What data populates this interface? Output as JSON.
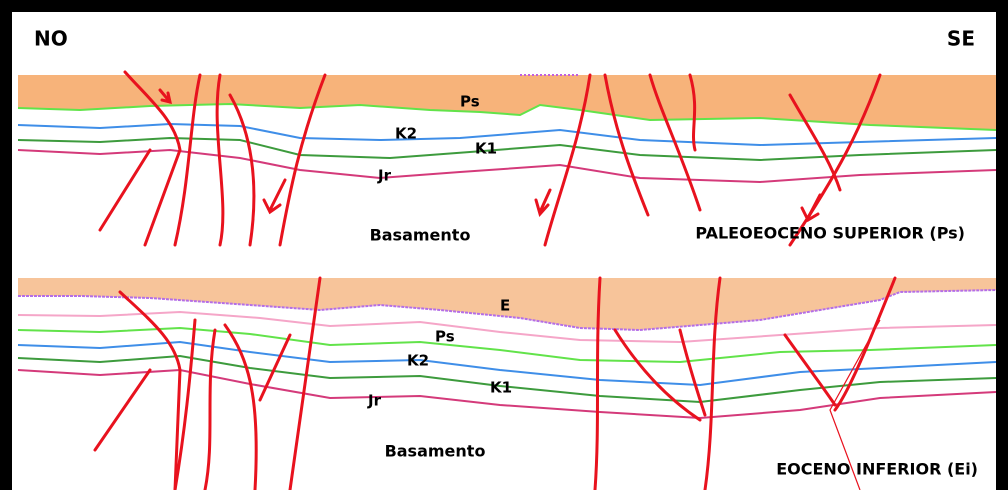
{
  "header": {
    "left": "NO",
    "right": "SE"
  },
  "panels": [
    {
      "title": "PALEOEOCENO SUPERIOR (Ps)",
      "labels": [
        "Ps",
        "K2",
        "K1",
        "Jr",
        "Basamento"
      ]
    },
    {
      "title": "EOCENO INFERIOR (Ei)",
      "labels": [
        "E",
        "Ps",
        "K2",
        "K1",
        "Jr",
        "Basamento"
      ]
    }
  ]
}
